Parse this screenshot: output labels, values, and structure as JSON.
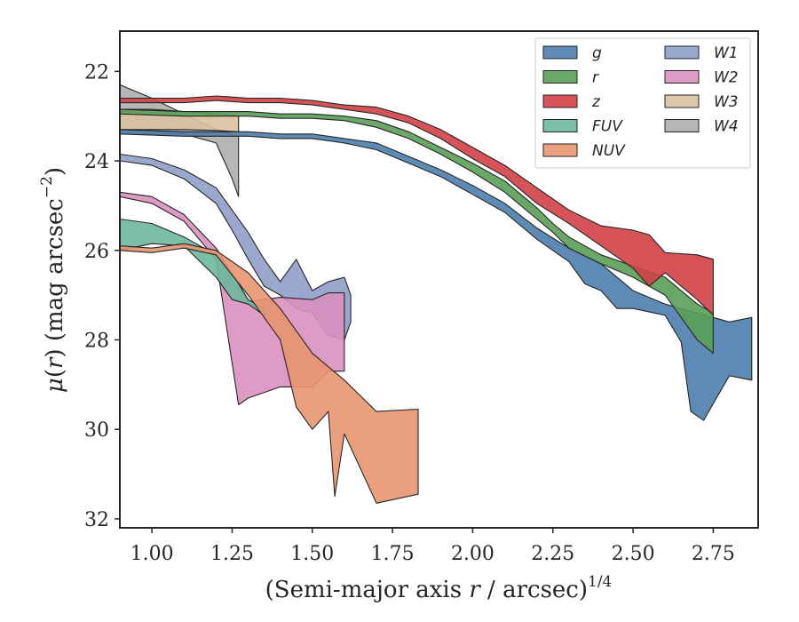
{
  "chart_data": {
    "type": "area",
    "title": "",
    "xlabel": "(Semi-major axis r / arcsec)",
    "xlabel_parts": {
      "prefix": "(Semi-major axis ",
      "var": "r",
      "suffix": " / arcsec)",
      "exponent": "1/4"
    },
    "ylabel": "μ(r) (mag arcsec⁻²)",
    "ylabel_parts": {
      "mu": "μ",
      "open": "(",
      "var": "r",
      "close": ")",
      "unit": " (mag arcsec",
      "exp": "−2",
      "end": ")"
    },
    "xlim": [
      0.9,
      2.89
    ],
    "ylim": [
      32.2,
      21.1
    ],
    "y_inverted": true,
    "xticks": [
      1.0,
      1.25,
      1.5,
      1.75,
      2.0,
      2.25,
      2.5,
      2.75
    ],
    "xtick_labels": [
      "1.00",
      "1.25",
      "1.50",
      "1.75",
      "2.00",
      "2.25",
      "2.50",
      "2.75"
    ],
    "yticks": [
      22,
      24,
      26,
      28,
      30,
      32
    ],
    "ytick_labels": [
      "22",
      "24",
      "26",
      "28",
      "30",
      "32"
    ],
    "grid": false,
    "legend": {
      "placement": "top-right",
      "columns": 2
    },
    "series": [
      {
        "name": "W4",
        "color": "#aeaeae",
        "upper": [
          [
            0.9,
            22.3
          ],
          [
            1.0,
            22.6
          ],
          [
            1.1,
            22.95
          ],
          [
            1.2,
            23.3
          ],
          [
            1.27,
            23.45
          ],
          [
            1.27,
            23.45
          ]
        ],
        "lower": [
          [
            0.9,
            23.4
          ],
          [
            1.0,
            23.4
          ],
          [
            1.1,
            23.4
          ],
          [
            1.2,
            23.6
          ],
          [
            1.25,
            24.4
          ],
          [
            1.27,
            24.8
          ]
        ]
      },
      {
        "name": "W3",
        "color": "#dbc1a0",
        "upper": [
          [
            0.9,
            22.85
          ],
          [
            1.0,
            22.85
          ],
          [
            1.1,
            22.9
          ],
          [
            1.2,
            22.95
          ],
          [
            1.27,
            23.0
          ]
        ],
        "lower": [
          [
            0.9,
            23.3
          ],
          [
            1.0,
            23.3
          ],
          [
            1.1,
            23.3
          ],
          [
            1.2,
            23.32
          ],
          [
            1.27,
            23.35
          ]
        ]
      },
      {
        "name": "g",
        "color": "#4c7eae",
        "upper": [
          [
            0.9,
            23.3
          ],
          [
            1.1,
            23.35
          ],
          [
            1.3,
            23.35
          ],
          [
            1.4,
            23.4
          ],
          [
            1.5,
            23.4
          ],
          [
            1.6,
            23.5
          ],
          [
            1.7,
            23.6
          ],
          [
            1.8,
            23.9
          ],
          [
            1.9,
            24.2
          ],
          [
            2.0,
            24.55
          ],
          [
            2.1,
            24.95
          ],
          [
            2.2,
            25.5
          ],
          [
            2.3,
            25.95
          ],
          [
            2.4,
            26.3
          ],
          [
            2.5,
            26.9
          ],
          [
            2.6,
            27.2
          ],
          [
            2.7,
            27.4
          ],
          [
            2.8,
            27.6
          ],
          [
            2.87,
            27.5
          ]
        ],
        "lower": [
          [
            0.9,
            23.4
          ],
          [
            1.1,
            23.45
          ],
          [
            1.3,
            23.45
          ],
          [
            1.4,
            23.5
          ],
          [
            1.5,
            23.5
          ],
          [
            1.6,
            23.6
          ],
          [
            1.7,
            23.75
          ],
          [
            1.8,
            24.05
          ],
          [
            1.9,
            24.35
          ],
          [
            2.0,
            24.75
          ],
          [
            2.1,
            25.15
          ],
          [
            2.2,
            25.75
          ],
          [
            2.3,
            26.25
          ],
          [
            2.35,
            26.75
          ],
          [
            2.4,
            26.9
          ],
          [
            2.45,
            27.3
          ],
          [
            2.5,
            27.3
          ],
          [
            2.6,
            27.45
          ],
          [
            2.65,
            28.05
          ],
          [
            2.68,
            29.6
          ],
          [
            2.72,
            29.8
          ],
          [
            2.8,
            28.8
          ],
          [
            2.87,
            28.9
          ]
        ]
      },
      {
        "name": "r",
        "color": "#5a9e58",
        "upper": [
          [
            0.9,
            22.85
          ],
          [
            1.1,
            22.9
          ],
          [
            1.3,
            22.9
          ],
          [
            1.4,
            22.95
          ],
          [
            1.5,
            22.95
          ],
          [
            1.6,
            23.0
          ],
          [
            1.7,
            23.1
          ],
          [
            1.8,
            23.35
          ],
          [
            1.9,
            23.7
          ],
          [
            2.0,
            24.05
          ],
          [
            2.1,
            24.45
          ],
          [
            2.2,
            25.05
          ],
          [
            2.25,
            25.4
          ],
          [
            2.3,
            25.7
          ],
          [
            2.4,
            26.1
          ],
          [
            2.5,
            26.35
          ],
          [
            2.6,
            26.6
          ],
          [
            2.7,
            27.2
          ],
          [
            2.75,
            27.4
          ]
        ],
        "lower": [
          [
            0.9,
            22.95
          ],
          [
            1.1,
            23.0
          ],
          [
            1.3,
            23.0
          ],
          [
            1.4,
            23.05
          ],
          [
            1.5,
            23.05
          ],
          [
            1.6,
            23.1
          ],
          [
            1.7,
            23.25
          ],
          [
            1.8,
            23.5
          ],
          [
            1.9,
            23.85
          ],
          [
            2.0,
            24.25
          ],
          [
            2.1,
            24.7
          ],
          [
            2.2,
            25.3
          ],
          [
            2.25,
            25.6
          ],
          [
            2.3,
            25.95
          ],
          [
            2.4,
            26.3
          ],
          [
            2.5,
            26.6
          ],
          [
            2.6,
            27.0
          ],
          [
            2.7,
            28.0
          ],
          [
            2.75,
            28.3
          ]
        ]
      },
      {
        "name": "z",
        "color": "#d24045",
        "upper": [
          [
            0.9,
            22.6
          ],
          [
            1.1,
            22.6
          ],
          [
            1.2,
            22.55
          ],
          [
            1.3,
            22.6
          ],
          [
            1.4,
            22.6
          ],
          [
            1.5,
            22.65
          ],
          [
            1.6,
            22.75
          ],
          [
            1.7,
            22.8
          ],
          [
            1.8,
            23.0
          ],
          [
            1.9,
            23.3
          ],
          [
            2.0,
            23.7
          ],
          [
            2.1,
            24.1
          ],
          [
            2.2,
            24.6
          ],
          [
            2.3,
            25.1
          ],
          [
            2.4,
            25.45
          ],
          [
            2.5,
            25.55
          ],
          [
            2.55,
            25.65
          ],
          [
            2.6,
            26.05
          ],
          [
            2.7,
            26.1
          ],
          [
            2.75,
            26.2
          ]
        ],
        "lower": [
          [
            0.9,
            22.7
          ],
          [
            1.1,
            22.7
          ],
          [
            1.2,
            22.65
          ],
          [
            1.3,
            22.7
          ],
          [
            1.4,
            22.7
          ],
          [
            1.5,
            22.75
          ],
          [
            1.6,
            22.85
          ],
          [
            1.7,
            22.95
          ],
          [
            1.8,
            23.15
          ],
          [
            1.9,
            23.5
          ],
          [
            2.0,
            23.95
          ],
          [
            2.1,
            24.35
          ],
          [
            2.2,
            24.95
          ],
          [
            2.3,
            25.4
          ],
          [
            2.4,
            25.9
          ],
          [
            2.5,
            26.4
          ],
          [
            2.55,
            26.8
          ],
          [
            2.6,
            26.5
          ],
          [
            2.7,
            27.1
          ],
          [
            2.75,
            27.45
          ]
        ]
      },
      {
        "name": "W1",
        "color": "#8f9fc8",
        "upper": [
          [
            0.9,
            23.85
          ],
          [
            1.0,
            23.95
          ],
          [
            1.1,
            24.2
          ],
          [
            1.2,
            24.6
          ],
          [
            1.25,
            25.1
          ],
          [
            1.3,
            25.6
          ],
          [
            1.35,
            26.2
          ],
          [
            1.4,
            26.7
          ],
          [
            1.45,
            26.2
          ],
          [
            1.5,
            26.9
          ],
          [
            1.55,
            26.7
          ],
          [
            1.6,
            26.6
          ],
          [
            1.62,
            27.0
          ]
        ],
        "lower": [
          [
            0.9,
            24.0
          ],
          [
            1.0,
            24.1
          ],
          [
            1.1,
            24.4
          ],
          [
            1.2,
            24.95
          ],
          [
            1.25,
            25.55
          ],
          [
            1.3,
            26.2
          ],
          [
            1.35,
            26.8
          ],
          [
            1.4,
            27.0
          ],
          [
            1.45,
            27.3
          ],
          [
            1.5,
            27.4
          ],
          [
            1.55,
            27.9
          ],
          [
            1.6,
            28.0
          ],
          [
            1.62,
            27.6
          ]
        ]
      },
      {
        "name": "W2",
        "color": "#d990c0",
        "upper": [
          [
            0.9,
            24.7
          ],
          [
            1.0,
            24.8
          ],
          [
            1.1,
            25.2
          ],
          [
            1.2,
            25.95
          ],
          [
            1.27,
            26.75
          ],
          [
            1.3,
            27.15
          ],
          [
            1.4,
            27.05
          ],
          [
            1.5,
            27.1
          ],
          [
            1.55,
            26.95
          ],
          [
            1.6,
            26.95
          ]
        ],
        "lower": [
          [
            0.9,
            24.8
          ],
          [
            1.0,
            24.95
          ],
          [
            1.1,
            25.35
          ],
          [
            1.2,
            26.2
          ],
          [
            1.27,
            29.45
          ],
          [
            1.3,
            29.3
          ],
          [
            1.4,
            29.05
          ],
          [
            1.5,
            29.05
          ],
          [
            1.55,
            28.7
          ],
          [
            1.6,
            28.7
          ]
        ]
      },
      {
        "name": "FUV",
        "color": "#6cb89c",
        "upper": [
          [
            0.9,
            25.3
          ],
          [
            1.0,
            25.4
          ],
          [
            1.1,
            25.7
          ],
          [
            1.2,
            26.1
          ],
          [
            1.25,
            26.5
          ],
          [
            1.3,
            27.1
          ],
          [
            1.35,
            27.3
          ]
        ],
        "lower": [
          [
            0.9,
            26.0
          ],
          [
            1.0,
            25.85
          ],
          [
            1.1,
            25.9
          ],
          [
            1.2,
            26.6
          ],
          [
            1.25,
            27.1
          ],
          [
            1.3,
            27.2
          ],
          [
            1.35,
            27.45
          ]
        ]
      },
      {
        "name": "NUV",
        "color": "#e89570",
        "upper": [
          [
            0.9,
            25.9
          ],
          [
            1.0,
            25.95
          ],
          [
            1.1,
            25.85
          ],
          [
            1.2,
            26.0
          ],
          [
            1.3,
            26.5
          ],
          [
            1.4,
            27.3
          ],
          [
            1.5,
            28.3
          ],
          [
            1.55,
            28.6
          ],
          [
            1.6,
            28.9
          ],
          [
            1.7,
            29.6
          ],
          [
            1.83,
            29.55
          ]
        ],
        "lower": [
          [
            0.9,
            26.0
          ],
          [
            1.0,
            26.05
          ],
          [
            1.1,
            25.95
          ],
          [
            1.2,
            26.1
          ],
          [
            1.3,
            27.0
          ],
          [
            1.4,
            28.0
          ],
          [
            1.45,
            29.5
          ],
          [
            1.5,
            30.0
          ],
          [
            1.55,
            29.6
          ],
          [
            1.57,
            31.5
          ],
          [
            1.6,
            30.1
          ],
          [
            1.7,
            31.65
          ],
          [
            1.83,
            31.45
          ]
        ]
      }
    ],
    "legend_order": [
      "g",
      "r",
      "z",
      "FUV",
      "NUV",
      "W1",
      "W2",
      "W3",
      "W4"
    ]
  }
}
